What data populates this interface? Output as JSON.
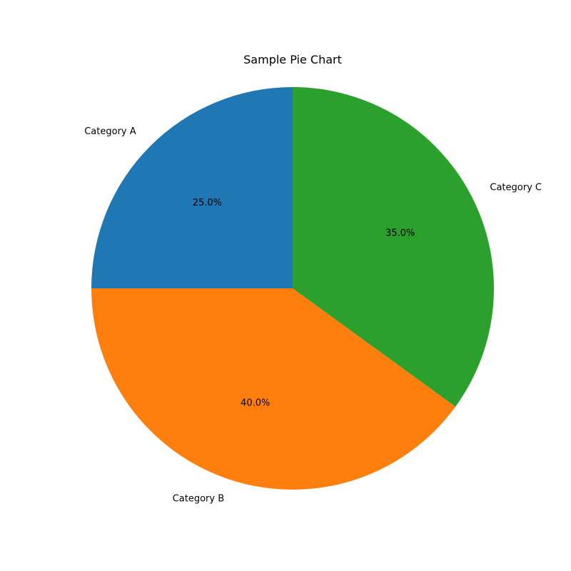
{
  "chart_data": {
    "type": "pie",
    "title": "Sample Pie Chart",
    "categories": [
      "Category A",
      "Category B",
      "Category C"
    ],
    "values": [
      25.0,
      40.0,
      35.0
    ],
    "percent_labels": [
      "25.0%",
      "40.0%",
      "35.0%"
    ],
    "colors": [
      "#1f77b4",
      "#ff7f0e",
      "#2ca02c"
    ],
    "start_angle": "90",
    "direction": "counterclockwise",
    "legend": "none"
  }
}
